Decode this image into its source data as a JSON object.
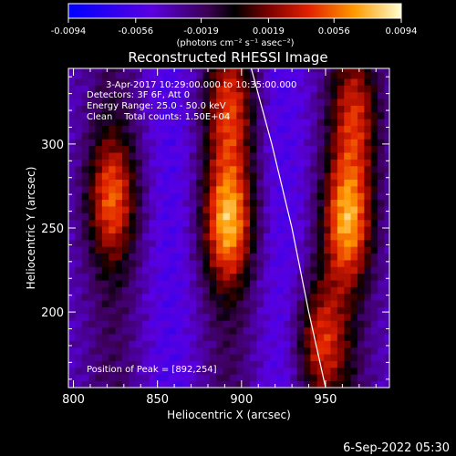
{
  "chart_data": {
    "type": "heatmap",
    "title": "Reconstructed RHESSI Image",
    "xlabel": "Heliocentric X (arcsec)",
    "ylabel": "Heliocentric Y (arcsec)",
    "xlim": [
      797,
      988
    ],
    "ylim": [
      155,
      345
    ],
    "x_ticks": [
      800,
      850,
      900,
      950
    ],
    "y_ticks": [
      200,
      250,
      300
    ],
    "annotations": [
      "3-Apr-2017 10:29:00.000 to 10:35:00.000",
      "Detectors: 3F 6F, Att 0",
      "Energy Range: 25.0 - 50.0 keV",
      "Clean    Total counts: 1.50E+04"
    ],
    "peak_label": "Position of Peak = [892,254]",
    "peak": [
      892,
      254
    ],
    "colorbar": {
      "ticks": [
        "-0.0094",
        "-0.0056",
        "-0.0019",
        "0.0019",
        "0.0056",
        "0.0094"
      ],
      "tick_values": [
        -0.0094,
        -0.0056,
        -0.0019,
        0.0019,
        0.0056,
        0.0094
      ],
      "range": [
        -0.0094,
        0.0094
      ],
      "units": "(photons cm⁻² s⁻¹ asec⁻²)"
    },
    "sources": [
      {
        "x": 892,
        "y": 254,
        "amp": 0.0094
      },
      {
        "x": 963,
        "y": 255,
        "amp": 0.009
      },
      {
        "x": 823,
        "y": 268,
        "amp": 0.0072
      },
      {
        "x": 947,
        "y": 182,
        "amp": 0.0074
      },
      {
        "x": 893,
        "y": 322,
        "amp": 0.0062
      },
      {
        "x": 968,
        "y": 318,
        "amp": 0.0058
      }
    ],
    "limb_curve": [
      [
        905,
        348
      ],
      [
        918,
        300
      ],
      [
        930,
        250
      ],
      [
        940,
        200
      ],
      [
        950,
        155
      ]
    ],
    "colors": {
      "background": "#000000",
      "limb": "#ffffff"
    }
  },
  "footer": {
    "timestamp": "6-Sep-2022 05:30"
  }
}
